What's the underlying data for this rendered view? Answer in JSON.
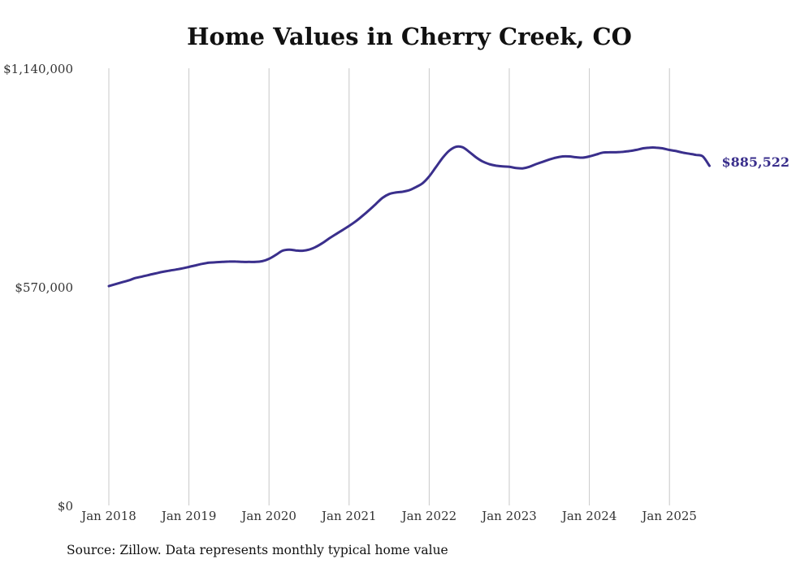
{
  "chart_data": {
    "type": "line",
    "title": "Home Values in Cherry Creek, CO",
    "source": "Source: Zillow. Data represents monthly typical home value",
    "x_tick_labels": [
      "Jan 2018",
      "Jan 2019",
      "Jan 2020",
      "Jan 2021",
      "Jan 2022",
      "Jan 2023",
      "Jan 2024",
      "Jan 2025"
    ],
    "y_tick_labels": [
      "$0",
      "$570,000",
      "$1,140,000"
    ],
    "y_ticks": [
      0,
      570000,
      1140000
    ],
    "ylim": [
      0,
      1140000
    ],
    "xlim": [
      "2018-01",
      "2025-07"
    ],
    "grid": "vertical",
    "line_color": "#3a2f8c",
    "end_label": "$885,522",
    "series": [
      {
        "x": [
          "2018-01",
          "2018-02",
          "2018-03",
          "2018-04",
          "2018-05",
          "2018-06",
          "2018-07",
          "2018-08",
          "2018-09",
          "2018-10",
          "2018-11",
          "2018-12",
          "2019-01",
          "2019-02",
          "2019-03",
          "2019-04",
          "2019-05",
          "2019-06",
          "2019-07",
          "2019-08",
          "2019-09",
          "2019-10",
          "2019-11",
          "2019-12",
          "2020-01",
          "2020-02",
          "2020-03",
          "2020-04",
          "2020-05",
          "2020-06",
          "2020-07",
          "2020-08",
          "2020-09",
          "2020-10",
          "2020-11",
          "2020-12",
          "2021-01",
          "2021-02",
          "2021-03",
          "2021-04",
          "2021-05",
          "2021-06",
          "2021-07",
          "2021-08",
          "2021-09",
          "2021-10",
          "2021-11",
          "2021-12",
          "2022-01",
          "2022-02",
          "2022-03",
          "2022-04",
          "2022-05",
          "2022-06",
          "2022-07",
          "2022-08",
          "2022-09",
          "2022-10",
          "2022-11",
          "2022-12",
          "2023-01",
          "2023-02",
          "2023-03",
          "2023-04",
          "2023-05",
          "2023-06",
          "2023-07",
          "2023-08",
          "2023-09",
          "2023-10",
          "2023-11",
          "2023-12",
          "2024-01",
          "2024-02",
          "2024-03",
          "2024-04",
          "2024-05",
          "2024-06",
          "2024-07",
          "2024-08",
          "2024-09",
          "2024-10",
          "2024-11",
          "2024-12",
          "2025-01",
          "2025-02",
          "2025-03",
          "2025-04",
          "2025-05",
          "2025-06",
          "2025-07"
        ],
        "values": [
          572000,
          577000,
          582000,
          587000,
          593000,
          597000,
          601000,
          605000,
          609000,
          612000,
          615000,
          618000,
          622000,
          626000,
          630000,
          633000,
          634000,
          635000,
          636000,
          636000,
          635000,
          635000,
          635000,
          637000,
          643000,
          653000,
          664000,
          667000,
          665000,
          664000,
          667000,
          674000,
          684000,
          696000,
          707000,
          718000,
          729000,
          741000,
          755000,
          770000,
          786000,
          802000,
          812000,
          816000,
          818000,
          822000,
          830000,
          840000,
          858000,
          882000,
          906000,
          925000,
          935000,
          934000,
          922000,
          908000,
          897000,
          890000,
          886000,
          884000,
          883000,
          880000,
          879000,
          883000,
          890000,
          896000,
          902000,
          907000,
          910000,
          910000,
          908000,
          907000,
          910000,
          915000,
          920000,
          921000,
          921000,
          922000,
          924000,
          927000,
          931000,
          933000,
          933000,
          931000,
          927000,
          924000,
          920000,
          917000,
          914000,
          910000,
          885522
        ]
      }
    ]
  }
}
